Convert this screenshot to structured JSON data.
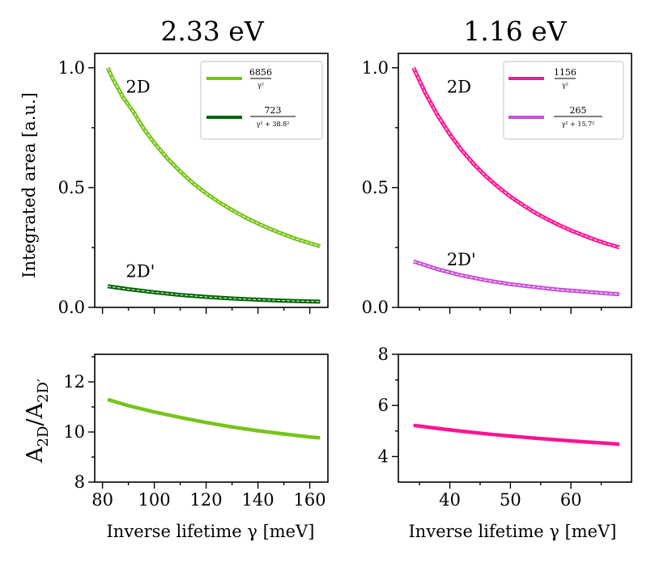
{
  "chart_data": [
    {
      "id": "top-left",
      "type": "line",
      "title": "2.33 eV",
      "ylabel": "Integrated area [a.u.]",
      "xlim": [
        77,
        167
      ],
      "ylim": [
        0,
        1.06
      ],
      "yticks": [
        0.0,
        0.5,
        1.0
      ],
      "yticklabels": [
        "0.0",
        "0.5",
        "1.0"
      ],
      "yminor": [
        0.25,
        0.75
      ],
      "xticks": [
        80,
        100,
        120,
        140,
        160
      ],
      "xminor": [
        90,
        110,
        130,
        150
      ],
      "annotations": [
        {
          "text": "2D",
          "x": 89,
          "y": 0.92
        },
        {
          "text": "2D'",
          "x": 89,
          "y": 0.15
        }
      ],
      "series": [
        {
          "name": "2D",
          "color": "#76c41a",
          "x": [
            82,
            84,
            88,
            92,
            96,
            100,
            105,
            110,
            115,
            120,
            125,
            130,
            135,
            140,
            145,
            150,
            155,
            160,
            164
          ],
          "values": [
            1.0,
            0.953,
            0.876,
            0.815,
            0.744,
            0.686,
            0.622,
            0.567,
            0.518,
            0.476,
            0.439,
            0.406,
            0.376,
            0.35,
            0.326,
            0.305,
            0.285,
            0.268,
            0.255
          ]
        },
        {
          "name": "2D'",
          "color": "#006400",
          "x": [
            82,
            90,
            100,
            110,
            120,
            130,
            140,
            150,
            160,
            164
          ],
          "values": [
            0.088,
            0.076,
            0.063,
            0.052,
            0.044,
            0.037,
            0.032,
            0.028,
            0.025,
            0.024
          ]
        }
      ],
      "legend": {
        "position": "upper-right",
        "entries": [
          {
            "color": "#76c41a",
            "numerator": "6856",
            "denominator": "γ²"
          },
          {
            "color": "#006400",
            "numerator": "723",
            "denominator": "γ² + 38.8²"
          }
        ]
      }
    },
    {
      "id": "top-right",
      "type": "line",
      "title": "1.16 eV",
      "xlim": [
        31.5,
        70
      ],
      "ylim": [
        0,
        1.06
      ],
      "yticks": [
        0.0,
        0.5,
        1.0
      ],
      "yticklabels": [
        "0.0",
        "0.5",
        "1.0"
      ],
      "yminor": [
        0.25,
        0.75
      ],
      "xticks": [
        40,
        50,
        60
      ],
      "xminor": [
        35,
        45,
        55,
        65
      ],
      "annotations": [
        {
          "text": "2D",
          "x": 39.5,
          "y": 0.92
        },
        {
          "text": "2D'",
          "x": 39.5,
          "y": 0.2
        }
      ],
      "series": [
        {
          "name": "2D",
          "color": "#ff1493",
          "x": [
            34,
            36,
            38,
            40,
            42,
            44,
            46,
            48,
            50,
            52,
            54,
            56,
            58,
            60,
            62,
            64,
            66,
            68
          ],
          "values": [
            1.0,
            0.892,
            0.801,
            0.722,
            0.655,
            0.597,
            0.546,
            0.502,
            0.462,
            0.428,
            0.396,
            0.369,
            0.344,
            0.321,
            0.301,
            0.282,
            0.265,
            0.25
          ]
        },
        {
          "name": "2D'",
          "color": "#c850d8",
          "x": [
            34,
            38,
            42,
            46,
            50,
            54,
            58,
            62,
            66,
            68
          ],
          "values": [
            0.192,
            0.159,
            0.133,
            0.113,
            0.097,
            0.085,
            0.074,
            0.066,
            0.058,
            0.055
          ]
        }
      ],
      "legend": {
        "position": "upper-right",
        "entries": [
          {
            "color": "#ff1493",
            "numerator": "1156",
            "denominator": "γ²"
          },
          {
            "color": "#c850d8",
            "numerator": "265",
            "denominator": "γ² + 15.7²"
          }
        ]
      }
    },
    {
      "id": "bottom-left",
      "type": "line",
      "xlabel": "Inverse lifetime γ [meV]",
      "ylabel_main": "A",
      "ylabel_sub1": "2D",
      "ylabel_sep": "/A",
      "ylabel_sub2": "2D′",
      "xlim": [
        77,
        167
      ],
      "ylim": [
        8,
        13.1
      ],
      "yticks": [
        8,
        10,
        12
      ],
      "yticklabels": [
        "8",
        "10",
        "12"
      ],
      "yminor": [
        9,
        11,
        13
      ],
      "xticks": [
        80,
        100,
        120,
        140,
        160
      ],
      "xticklabels": [
        "80",
        "100",
        "120",
        "140",
        "160"
      ],
      "xminor": [
        90,
        110,
        130,
        150
      ],
      "series": [
        {
          "name": "ratio",
          "color": "#76c41a",
          "x": [
            82,
            90,
            100,
            110,
            120,
            130,
            140,
            150,
            160,
            164
          ],
          "values": [
            11.3,
            11.05,
            10.8,
            10.58,
            10.38,
            10.2,
            10.05,
            9.92,
            9.8,
            9.77
          ]
        }
      ]
    },
    {
      "id": "bottom-right",
      "type": "line",
      "xlabel": "Inverse lifetime γ [meV]",
      "xlim": [
        31.5,
        70
      ],
      "ylim": [
        3,
        8
      ],
      "yticks": [
        4,
        6,
        8
      ],
      "yticklabels": [
        "4",
        "6",
        "8"
      ],
      "yminor": [
        5,
        7
      ],
      "xticks": [
        40,
        50,
        60
      ],
      "xticklabels": [
        "40",
        "50",
        "60"
      ],
      "xminor": [
        35,
        45,
        55,
        65
      ],
      "series": [
        {
          "name": "ratio",
          "color": "#ff1493",
          "x": [
            34,
            38,
            42,
            46,
            50,
            54,
            58,
            62,
            66,
            68
          ],
          "values": [
            5.22,
            5.1,
            4.99,
            4.89,
            4.8,
            4.72,
            4.65,
            4.58,
            4.52,
            4.48
          ]
        }
      ]
    }
  ]
}
